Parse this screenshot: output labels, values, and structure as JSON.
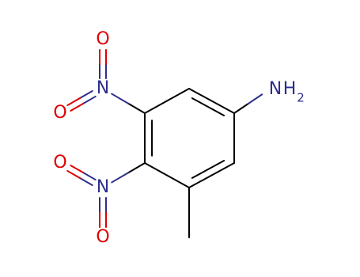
{
  "atoms": [
    {
      "label": "N",
      "extra": "H",
      "subscript": "2"
    },
    {
      "label": "N"
    },
    {
      "label": "O"
    },
    {
      "label": "O"
    },
    {
      "label": "N"
    },
    {
      "label": "O"
    },
    {
      "label": "O"
    }
  ]
}
